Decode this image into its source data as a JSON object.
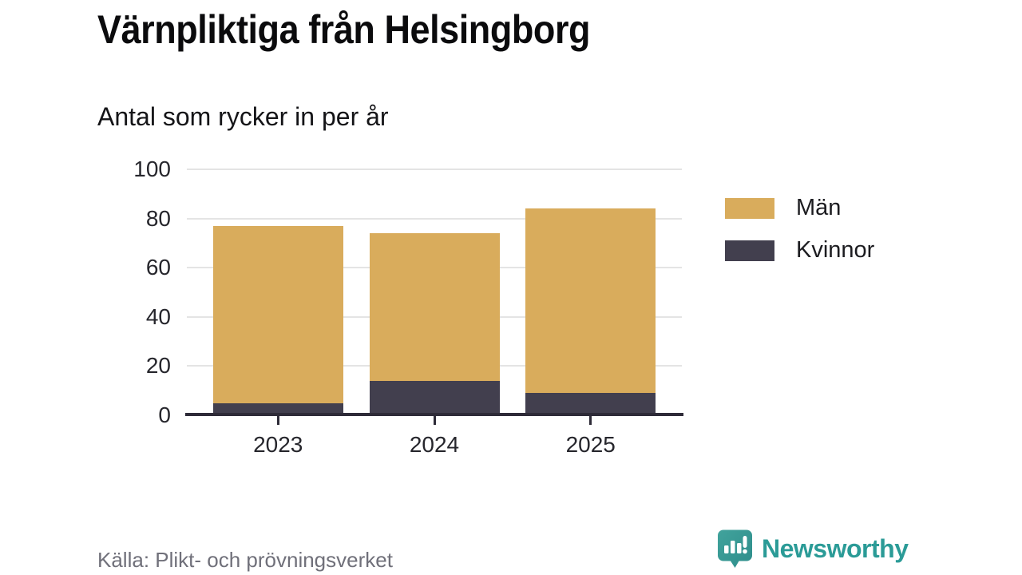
{
  "chart_data": {
    "type": "bar",
    "stacked": true,
    "title": "Värnpliktiga från Helsingborg",
    "subtitle": "Antal som rycker in per år",
    "categories": [
      "2023",
      "2024",
      "2025"
    ],
    "series": [
      {
        "name": "Män",
        "color": "#d9ac5c",
        "values": [
          72,
          60,
          75
        ]
      },
      {
        "name": "Kvinnor",
        "color": "#423f4e",
        "values": [
          5,
          14,
          9
        ]
      }
    ],
    "stack_order_bottom_to_top": [
      "Kvinnor",
      "Män"
    ],
    "stack_totals": [
      77,
      74,
      84
    ],
    "xlabel": "",
    "ylabel": "",
    "ylim": [
      0,
      100
    ],
    "yticks": [
      0,
      20,
      40,
      60,
      80,
      100
    ],
    "grid": "horizontal",
    "legend_position": "right",
    "colors": {
      "axis": "#2e2b38",
      "gridline": "#e4e4e4",
      "tick_label": "#26262c"
    }
  },
  "footer": {
    "source": "Källa: Plikt- och prövningsverket",
    "brand": {
      "name": "Newsworthy",
      "color": "#2b9b97",
      "icon": "newsworthy-speech-bubble-bar-chart-icon"
    }
  }
}
